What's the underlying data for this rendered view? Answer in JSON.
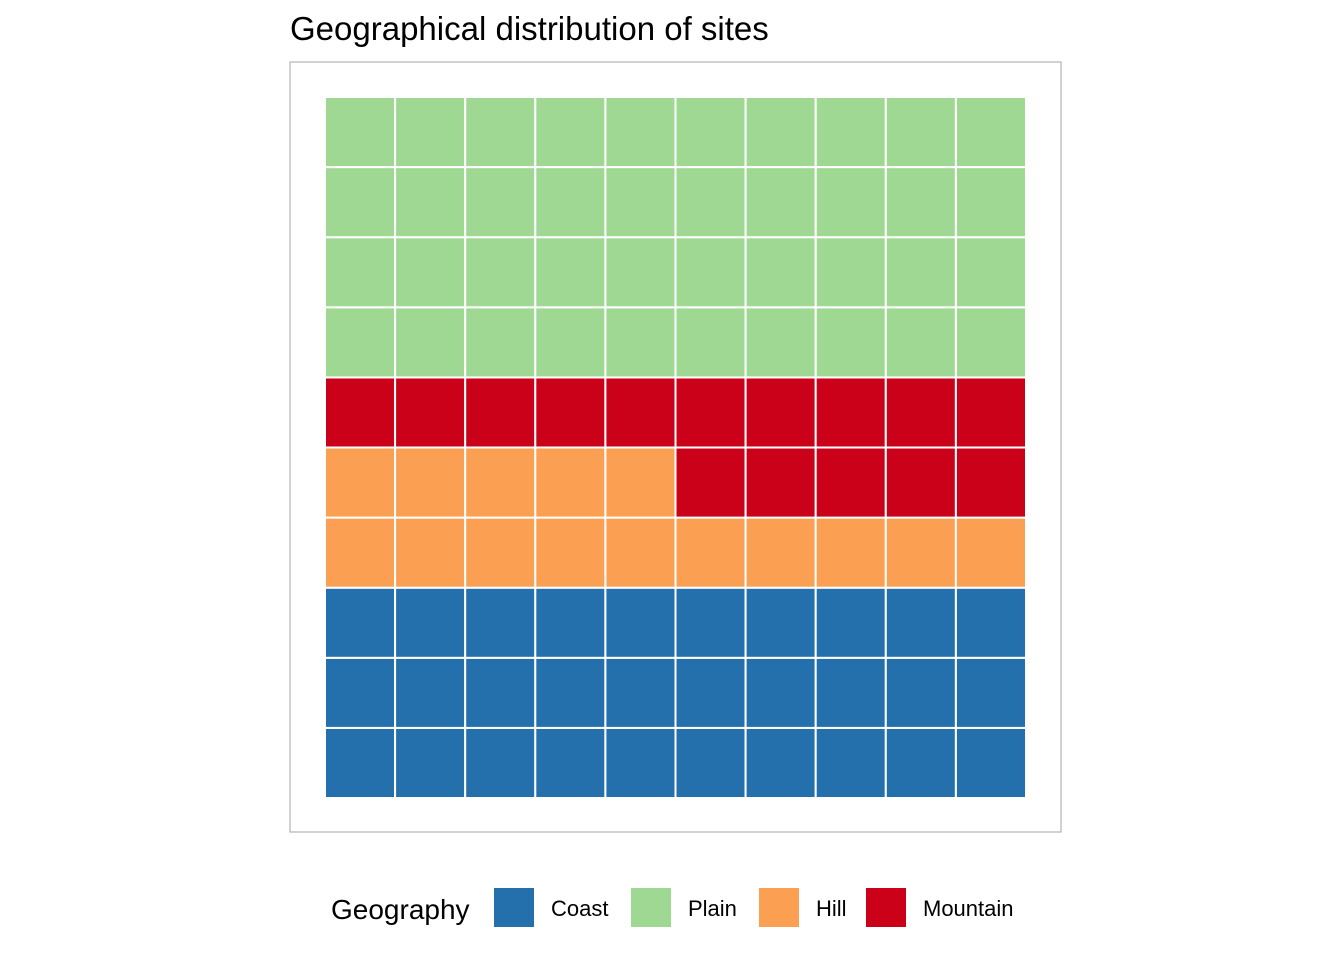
{
  "chart_data": {
    "type": "waffle",
    "title": "Geographical distribution of sites",
    "grid": {
      "rows": 10,
      "cols": 10
    },
    "categories": [
      "Coast",
      "Plain",
      "Hill",
      "Mountain"
    ],
    "values": [
      30,
      40,
      15,
      15
    ],
    "fill_order": [
      "Coast",
      "Hill",
      "Mountain",
      "Plain"
    ],
    "colors": {
      "Coast": "#2470AC",
      "Plain": "#9ED893",
      "Hill": "#FBA052",
      "Mountain": "#CB0019"
    },
    "legend": {
      "title": "Geography",
      "position": "bottom",
      "items": [
        "Coast",
        "Plain",
        "Hill",
        "Mountain"
      ]
    }
  }
}
